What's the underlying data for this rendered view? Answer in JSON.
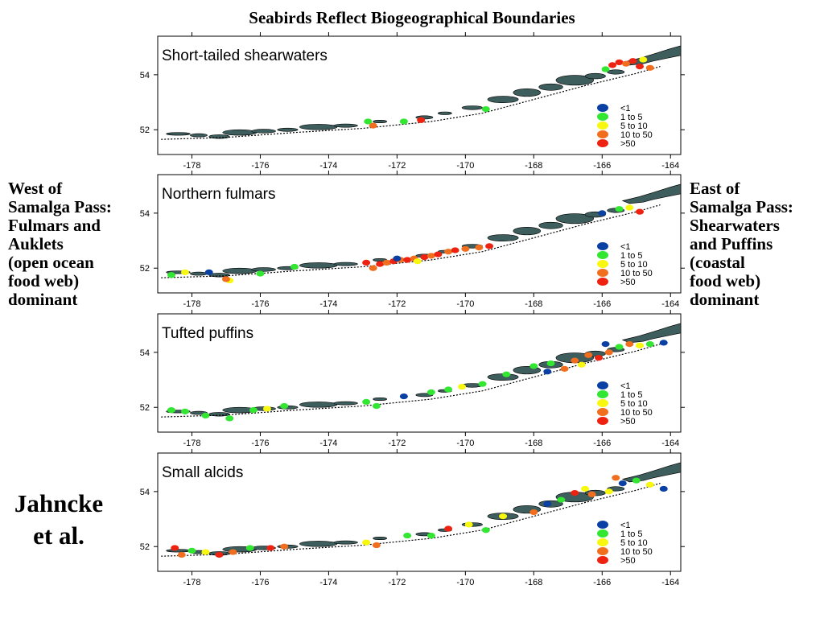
{
  "title": "Seabirds Reflect Biogeographical Boundaries",
  "west_note": [
    "West of",
    "Samalga Pass:",
    "Fulmars and",
    "Auklets",
    "(open ocean",
    "food web)",
    "dominant"
  ],
  "east_note": [
    "East of",
    "Samalga Pass:",
    "Shearwaters",
    "and Puffins",
    "(coastal",
    "food web)",
    "dominant"
  ],
  "citation": [
    "Jahncke",
    "et al."
  ],
  "colors": {
    "land": "#3e5d5d",
    "lt1": "#0a3fa3",
    "1to5": "#32e632",
    "5to10": "#f7f70f",
    "10to50": "#f06e1e",
    "gt50": "#ee2211"
  },
  "chart_data": [
    {
      "type": "scatter",
      "title": "Short-tailed shearwaters",
      "x_ticks": [
        "-178",
        "-176",
        "-174",
        "-172",
        "-170",
        "-168",
        "-166",
        "-164"
      ],
      "y_ticks": [
        "52",
        "54"
      ],
      "xlim": [
        -179,
        -163.7
      ],
      "ylim": [
        51.1,
        55.4
      ],
      "legend": [
        "<1",
        "1  to  5",
        "5  to  10",
        "10  to  50",
        ">50"
      ],
      "legend_position": "bottom-right",
      "points": [
        {
          "lon": -172.7,
          "lat": 52.15,
          "cls": "10to50"
        },
        {
          "lon": -172.85,
          "lat": 52.3,
          "cls": "1to5"
        },
        {
          "lon": -171.3,
          "lat": 52.35,
          "cls": "gt50"
        },
        {
          "lon": -171.8,
          "lat": 52.3,
          "cls": "1to5"
        },
        {
          "lon": -169.4,
          "lat": 52.75,
          "cls": "1to5"
        },
        {
          "lon": -165.7,
          "lat": 54.35,
          "cls": "gt50"
        },
        {
          "lon": -165.5,
          "lat": 54.45,
          "cls": "gt50"
        },
        {
          "lon": -165.3,
          "lat": 54.4,
          "cls": "10to50"
        },
        {
          "lon": -165.1,
          "lat": 54.5,
          "cls": "gt50"
        },
        {
          "lon": -164.9,
          "lat": 54.3,
          "cls": "gt50"
        },
        {
          "lon": -164.6,
          "lat": 54.25,
          "cls": "10to50"
        },
        {
          "lon": -165.9,
          "lat": 54.2,
          "cls": "1to5"
        },
        {
          "lon": -164.8,
          "lat": 54.55,
          "cls": "5to10"
        }
      ]
    },
    {
      "type": "scatter",
      "title": "Northern fulmars",
      "x_ticks": [
        "-178",
        "-176",
        "-174",
        "-172",
        "-170",
        "-168",
        "-166",
        "-164"
      ],
      "y_ticks": [
        "52",
        "54"
      ],
      "xlim": [
        -179,
        -163.7
      ],
      "ylim": [
        51.1,
        55.4
      ],
      "legend": [
        "<1",
        "1  to  5",
        "5  to  10",
        "10  to  50",
        ">50"
      ],
      "legend_position": "bottom-right",
      "points": [
        {
          "lon": -178.6,
          "lat": 51.75,
          "cls": "1to5"
        },
        {
          "lon": -178.2,
          "lat": 51.85,
          "cls": "5to10"
        },
        {
          "lon": -177.5,
          "lat": 51.85,
          "cls": "lt1"
        },
        {
          "lon": -176.9,
          "lat": 51.55,
          "cls": "5to10"
        },
        {
          "lon": -177.0,
          "lat": 51.6,
          "cls": "10to50"
        },
        {
          "lon": -176.0,
          "lat": 51.8,
          "cls": "1to5"
        },
        {
          "lon": -175.0,
          "lat": 52.05,
          "cls": "1to5"
        },
        {
          "lon": -172.9,
          "lat": 52.2,
          "cls": "gt50"
        },
        {
          "lon": -172.7,
          "lat": 52.0,
          "cls": "10to50"
        },
        {
          "lon": -172.5,
          "lat": 52.15,
          "cls": "gt50"
        },
        {
          "lon": -172.3,
          "lat": 52.2,
          "cls": "10to50"
        },
        {
          "lon": -172.1,
          "lat": 52.25,
          "cls": "gt50"
        },
        {
          "lon": -171.9,
          "lat": 52.3,
          "cls": "10to50"
        },
        {
          "lon": -171.7,
          "lat": 52.3,
          "cls": "gt50"
        },
        {
          "lon": -171.5,
          "lat": 52.35,
          "cls": "10to50"
        },
        {
          "lon": -171.2,
          "lat": 52.4,
          "cls": "gt50"
        },
        {
          "lon": -171.0,
          "lat": 52.45,
          "cls": "10to50"
        },
        {
          "lon": -170.8,
          "lat": 52.5,
          "cls": "gt50"
        },
        {
          "lon": -170.5,
          "lat": 52.6,
          "cls": "10to50"
        },
        {
          "lon": -170.3,
          "lat": 52.65,
          "cls": "gt50"
        },
        {
          "lon": -170.0,
          "lat": 52.7,
          "cls": "10to50"
        },
        {
          "lon": -169.6,
          "lat": 52.75,
          "cls": "10to50"
        },
        {
          "lon": -169.3,
          "lat": 52.8,
          "cls": "gt50"
        },
        {
          "lon": -172.0,
          "lat": 52.35,
          "cls": "lt1"
        },
        {
          "lon": -171.4,
          "lat": 52.25,
          "cls": "5to10"
        },
        {
          "lon": -166.0,
          "lat": 54.0,
          "cls": "lt1"
        },
        {
          "lon": -165.5,
          "lat": 54.15,
          "cls": "1to5"
        },
        {
          "lon": -165.2,
          "lat": 54.2,
          "cls": "5to10"
        },
        {
          "lon": -164.9,
          "lat": 54.05,
          "cls": "gt50"
        }
      ]
    },
    {
      "type": "scatter",
      "title": "Tufted puffins",
      "x_ticks": [
        "-178",
        "-176",
        "-174",
        "-172",
        "-170",
        "-168",
        "-166",
        "-164"
      ],
      "y_ticks": [
        "52",
        "54"
      ],
      "xlim": [
        -179,
        -163.7
      ],
      "ylim": [
        51.1,
        55.4
      ],
      "legend": [
        "<1",
        "1  to  5",
        "5  to  10",
        "10  to  50",
        ">50"
      ],
      "legend_position": "bottom-right",
      "points": [
        {
          "lon": -178.6,
          "lat": 51.9,
          "cls": "1to5"
        },
        {
          "lon": -178.2,
          "lat": 51.85,
          "cls": "1to5"
        },
        {
          "lon": -177.6,
          "lat": 51.7,
          "cls": "1to5"
        },
        {
          "lon": -176.9,
          "lat": 51.6,
          "cls": "1to5"
        },
        {
          "lon": -176.2,
          "lat": 51.9,
          "cls": "1to5"
        },
        {
          "lon": -175.8,
          "lat": 51.95,
          "cls": "5to10"
        },
        {
          "lon": -175.3,
          "lat": 52.05,
          "cls": "1to5"
        },
        {
          "lon": -172.9,
          "lat": 52.2,
          "cls": "1to5"
        },
        {
          "lon": -172.6,
          "lat": 52.05,
          "cls": "1to5"
        },
        {
          "lon": -171.8,
          "lat": 52.4,
          "cls": "lt1"
        },
        {
          "lon": -171.0,
          "lat": 52.55,
          "cls": "1to5"
        },
        {
          "lon": -170.5,
          "lat": 52.65,
          "cls": "1to5"
        },
        {
          "lon": -170.1,
          "lat": 52.75,
          "cls": "5to10"
        },
        {
          "lon": -169.5,
          "lat": 52.85,
          "cls": "1to5"
        },
        {
          "lon": -168.8,
          "lat": 53.2,
          "cls": "1to5"
        },
        {
          "lon": -168.0,
          "lat": 53.5,
          "cls": "1to5"
        },
        {
          "lon": -167.5,
          "lat": 53.6,
          "cls": "1to5"
        },
        {
          "lon": -167.1,
          "lat": 53.4,
          "cls": "10to50"
        },
        {
          "lon": -166.8,
          "lat": 53.7,
          "cls": "10to50"
        },
        {
          "lon": -166.4,
          "lat": 53.9,
          "cls": "10to50"
        },
        {
          "lon": -166.1,
          "lat": 53.8,
          "cls": "gt50"
        },
        {
          "lon": -165.8,
          "lat": 54.0,
          "cls": "10to50"
        },
        {
          "lon": -165.5,
          "lat": 54.2,
          "cls": "1to5"
        },
        {
          "lon": -165.2,
          "lat": 54.3,
          "cls": "10to50"
        },
        {
          "lon": -164.9,
          "lat": 54.25,
          "cls": "5to10"
        },
        {
          "lon": -164.6,
          "lat": 54.3,
          "cls": "1to5"
        },
        {
          "lon": -164.2,
          "lat": 54.35,
          "cls": "lt1"
        },
        {
          "lon": -167.6,
          "lat": 53.3,
          "cls": "lt1"
        },
        {
          "lon": -166.6,
          "lat": 53.55,
          "cls": "5to10"
        },
        {
          "lon": -165.9,
          "lat": 54.3,
          "cls": "lt1"
        }
      ]
    },
    {
      "type": "scatter",
      "title": "Small alcids",
      "x_ticks": [
        "-178",
        "-176",
        "-174",
        "-172",
        "-170",
        "-168",
        "-166",
        "-164"
      ],
      "y_ticks": [
        "52",
        "54"
      ],
      "xlim": [
        -179,
        -163.7
      ],
      "ylim": [
        51.1,
        55.4
      ],
      "legend": [
        "<1",
        "1  to  5",
        "5  to  10",
        "10  to  50",
        ">50"
      ],
      "legend_position": "bottom-right",
      "points": [
        {
          "lon": -178.5,
          "lat": 51.95,
          "cls": "gt50"
        },
        {
          "lon": -178.3,
          "lat": 51.7,
          "cls": "10to50"
        },
        {
          "lon": -178.0,
          "lat": 51.85,
          "cls": "1to5"
        },
        {
          "lon": -177.6,
          "lat": 51.8,
          "cls": "5to10"
        },
        {
          "lon": -177.2,
          "lat": 51.7,
          "cls": "gt50"
        },
        {
          "lon": -176.8,
          "lat": 51.8,
          "cls": "10to50"
        },
        {
          "lon": -176.3,
          "lat": 51.95,
          "cls": "1to5"
        },
        {
          "lon": -175.7,
          "lat": 51.95,
          "cls": "gt50"
        },
        {
          "lon": -175.3,
          "lat": 52.0,
          "cls": "10to50"
        },
        {
          "lon": -172.9,
          "lat": 52.15,
          "cls": "5to10"
        },
        {
          "lon": -172.6,
          "lat": 52.05,
          "cls": "10to50"
        },
        {
          "lon": -171.7,
          "lat": 52.4,
          "cls": "1to5"
        },
        {
          "lon": -171.0,
          "lat": 52.4,
          "cls": "1to5"
        },
        {
          "lon": -170.5,
          "lat": 52.65,
          "cls": "gt50"
        },
        {
          "lon": -169.9,
          "lat": 52.8,
          "cls": "5to10"
        },
        {
          "lon": -169.4,
          "lat": 52.6,
          "cls": "1to5"
        },
        {
          "lon": -168.9,
          "lat": 53.1,
          "cls": "5to10"
        },
        {
          "lon": -168.0,
          "lat": 53.25,
          "cls": "10to50"
        },
        {
          "lon": -167.6,
          "lat": 53.55,
          "cls": "lt1"
        },
        {
          "lon": -167.2,
          "lat": 53.7,
          "cls": "1to5"
        },
        {
          "lon": -166.8,
          "lat": 53.95,
          "cls": "gt50"
        },
        {
          "lon": -166.3,
          "lat": 53.9,
          "cls": "10to50"
        },
        {
          "lon": -165.8,
          "lat": 54.0,
          "cls": "5to10"
        },
        {
          "lon": -165.4,
          "lat": 54.3,
          "cls": "lt1"
        },
        {
          "lon": -165.0,
          "lat": 54.4,
          "cls": "1to5"
        },
        {
          "lon": -164.6,
          "lat": 54.25,
          "cls": "5to10"
        },
        {
          "lon": -164.2,
          "lat": 54.1,
          "cls": "lt1"
        },
        {
          "lon": -165.6,
          "lat": 54.5,
          "cls": "10to50"
        },
        {
          "lon": -166.5,
          "lat": 54.1,
          "cls": "5to10"
        }
      ]
    }
  ]
}
